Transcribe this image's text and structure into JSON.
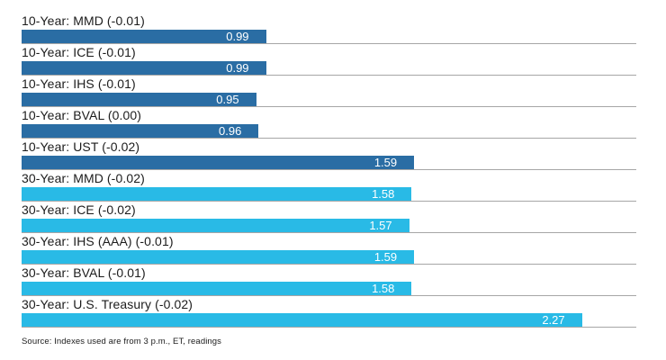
{
  "chart_data": {
    "type": "bar",
    "orientation": "horizontal",
    "categories": [
      "10-Year: MMD (-0.01)",
      "10-Year: ICE (-0.01)",
      "10-Year: IHS (-0.01)",
      "10-Year: BVAL (0.00)",
      "10-Year: UST (-0.02)",
      "30-Year: MMD (-0.02)",
      "30-Year: ICE (-0.02)",
      "30-Year: IHS (AAA) (-0.01)",
      "30-Year: BVAL (-0.01)",
      "30-Year: U.S. Treasury (-0.02)"
    ],
    "values": [
      0.99,
      0.99,
      0.95,
      0.96,
      1.59,
      1.58,
      1.57,
      1.59,
      1.58,
      2.27
    ],
    "value_labels": [
      "0.99",
      "0.99",
      "0.95",
      "0.96",
      "1.59",
      "1.58",
      "1.57",
      "1.59",
      "1.58",
      "2.27"
    ],
    "series_group": [
      "10-year",
      "10-year",
      "10-year",
      "10-year",
      "10-year",
      "30-year",
      "30-year",
      "30-year",
      "30-year",
      "30-year"
    ],
    "xlim": [
      0,
      2.49
    ],
    "colors": {
      "10-year": "#2a6da4",
      "30-year": "#29bae6"
    },
    "value_text_color": "#ffffff",
    "gridline_color": "#a6a6a6",
    "legend": "none",
    "title": "",
    "source_note": "Source: Indexes used are from 3 p.m., ET, readings"
  }
}
